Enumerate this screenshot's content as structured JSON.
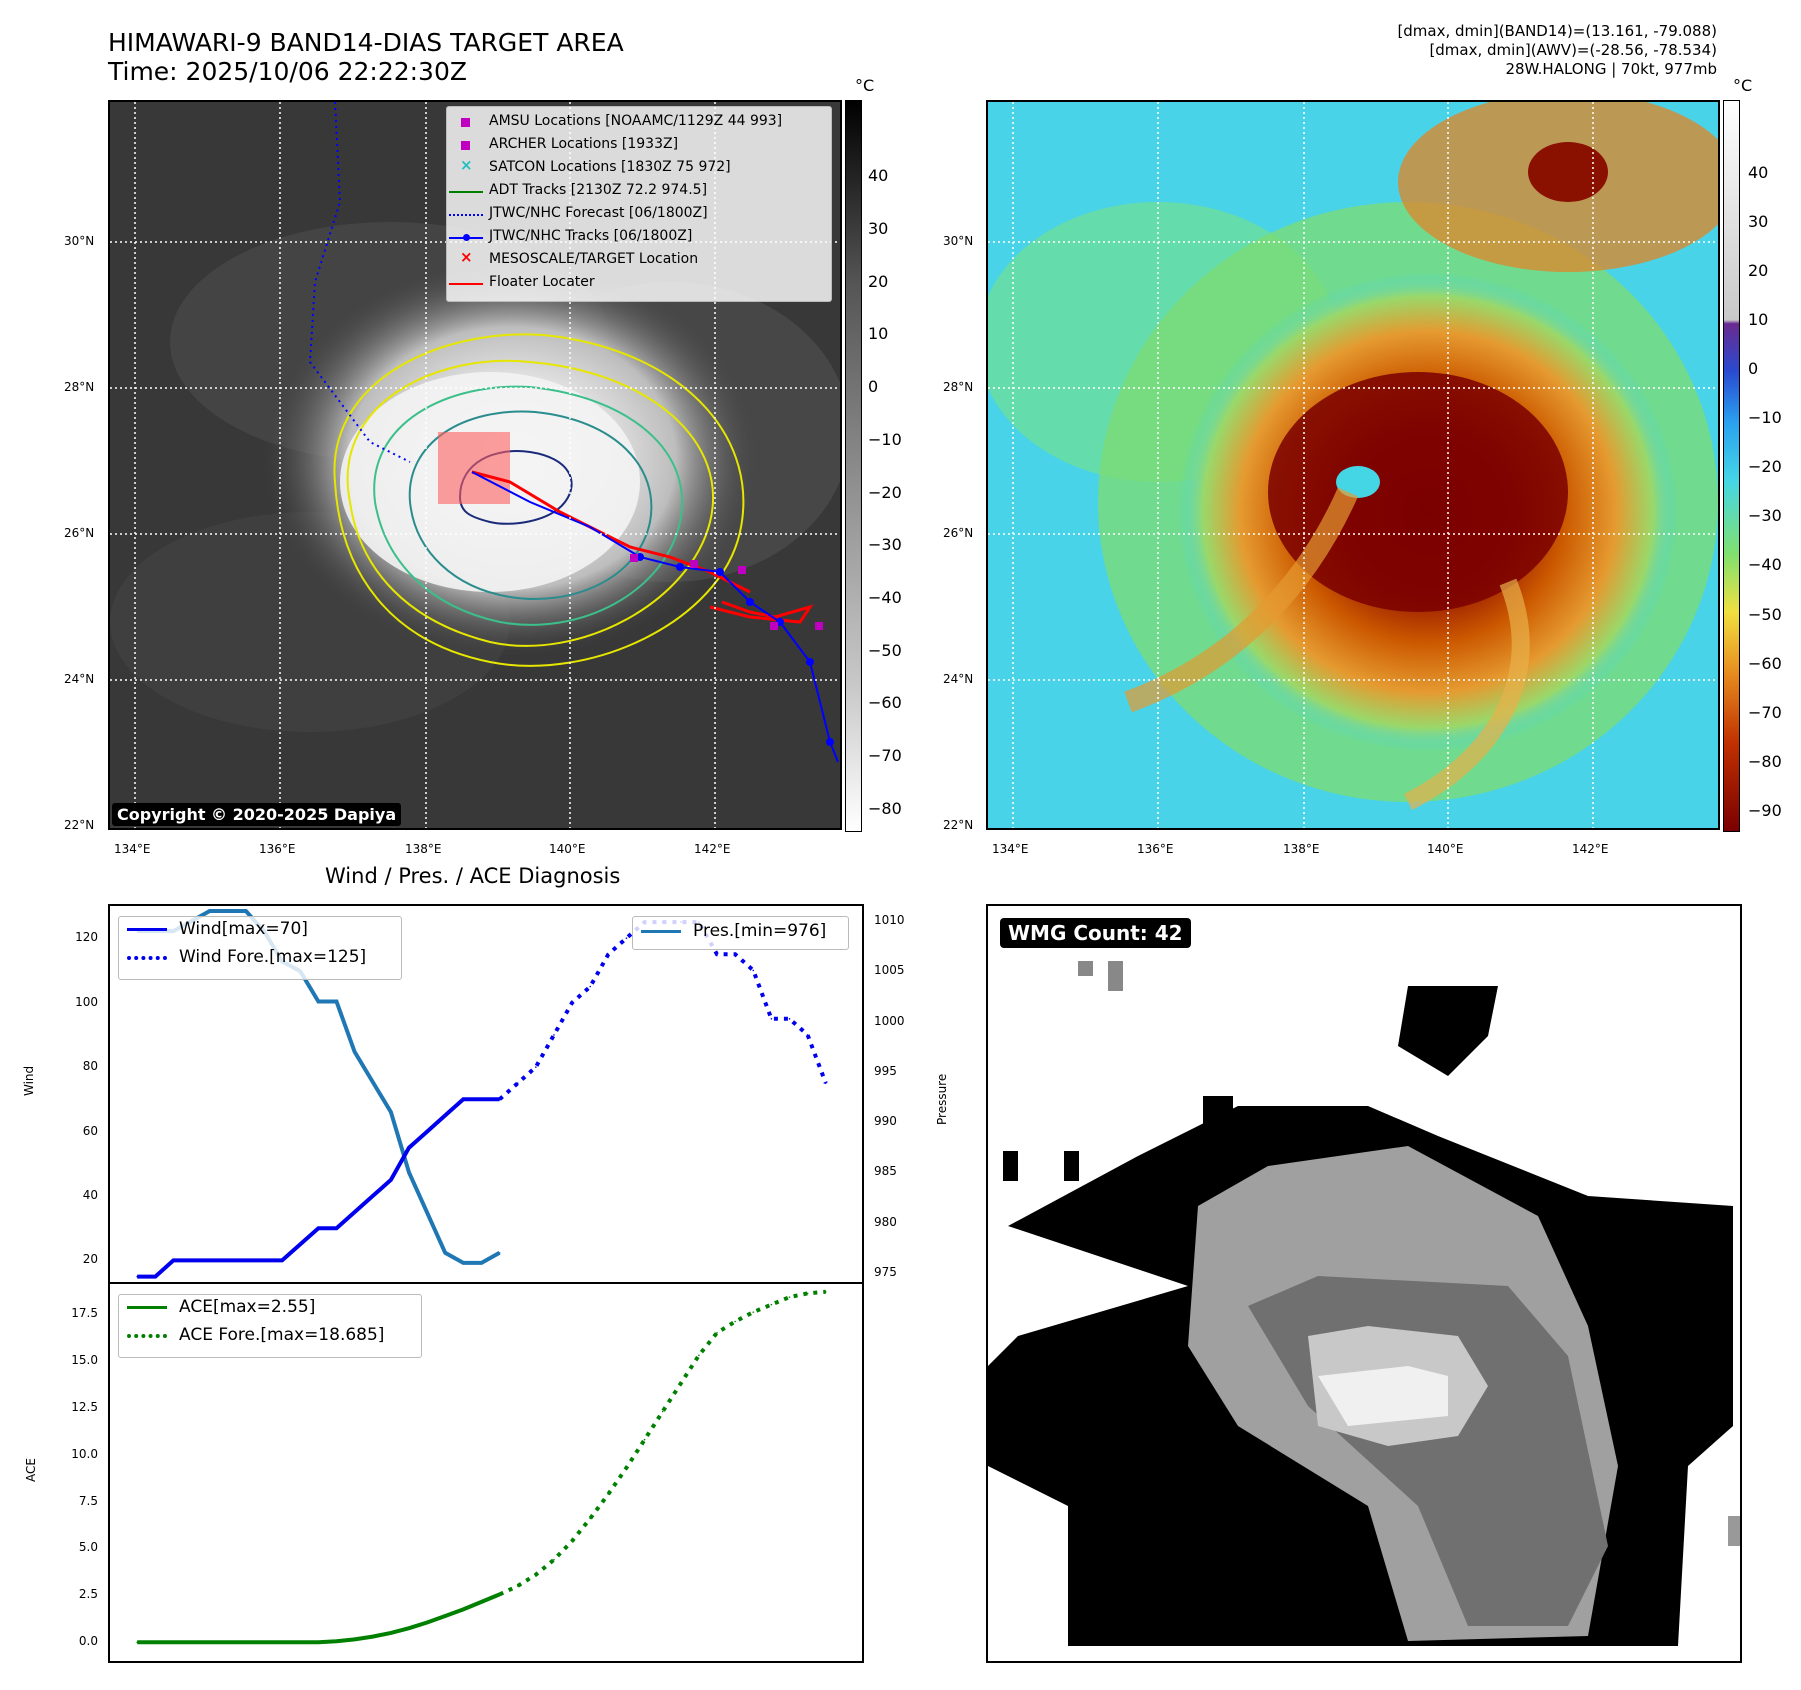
{
  "header": {
    "title_line1": "HIMAWARI-9 BAND14-DIAS TARGET AREA",
    "title_line2": "Time: 2025/10/06 22:22:30Z",
    "right_line1": "[dmax, dmin](BAND14)=(13.161, -79.088)",
    "right_line2": "[dmax, dmin](AWV)=(-28.56, -78.534)",
    "right_line3": "28W.HALONG | 70kt, 977mb"
  },
  "map_axes": {
    "lat_labels": [
      "30°N",
      "28°N",
      "26°N",
      "24°N",
      "22°N"
    ],
    "lon_labels": [
      "134°E",
      "136°E",
      "138°E",
      "140°E",
      "142°E"
    ]
  },
  "colorbar_left": {
    "unit": "°C",
    "ticks": [
      "40",
      "30",
      "20",
      "10",
      "0",
      "−10",
      "−20",
      "−30",
      "−40",
      "−50",
      "−60",
      "−70",
      "−80"
    ]
  },
  "colorbar_right": {
    "unit": "°C",
    "ticks": [
      "40",
      "30",
      "20",
      "10",
      "0",
      "−10",
      "−20",
      "−30",
      "−40",
      "−50",
      "−60",
      "−70",
      "−80",
      "−90"
    ]
  },
  "legend": {
    "items": [
      {
        "label": "AMSU Locations [NOAAMC/1129Z 44 993]",
        "color": "#c000c0",
        "marker": "square"
      },
      {
        "label": "ARCHER Locations [1933Z]",
        "color": "#c000c0",
        "marker": "square"
      },
      {
        "label": "SATCON Locations [1830Z 75 972]",
        "color": "#20c0c0",
        "marker": "x"
      },
      {
        "label": "ADT Tracks [2130Z 72.2 974.5]",
        "color": "#008000",
        "marker": "line"
      },
      {
        "label": "JTWC/NHC Forecast [06/1800Z]",
        "color": "#0000ff",
        "marker": "dotted"
      },
      {
        "label": "JTWC/NHC Tracks [06/1800Z]",
        "color": "#0000ff",
        "marker": "line-dot"
      },
      {
        "label": "MESOSCALE/TARGET Location",
        "color": "#ff0000",
        "marker": "x"
      },
      {
        "label": "Floater Locater",
        "color": "#ff0000",
        "marker": "line"
      }
    ]
  },
  "copyright": "Copyright © 2020-2025 Dapiya",
  "diag": {
    "title": "Wind / Pres. / ACE Diagnosis",
    "wind_ylabel": "Wind",
    "pres_ylabel": "Pressure",
    "ace_ylabel": "ACE",
    "legend_wind": "Wind[max=70]",
    "legend_wind_fore": "Wind Fore.[max=125]",
    "legend_pres": "Pres.[min=976]",
    "legend_ace": "ACE[max=2.55]",
    "legend_ace_fore": "ACE Fore.[max=18.685]"
  },
  "wmg": {
    "label": "WMG Count: 42"
  },
  "colors": {
    "wind": "#0000ee",
    "pressure": "#1f77b4",
    "ace": "#008000"
  },
  "chart_data": [
    {
      "type": "line",
      "title": "Wind / Pres. / ACE Diagnosis",
      "ylabel": "Wind",
      "ylim": [
        13,
        130
      ],
      "yticks": [
        20,
        40,
        60,
        80,
        100,
        120
      ],
      "series": [
        {
          "name": "Wind[max=70]",
          "style": "solid",
          "x": [
            0,
            1,
            2,
            3,
            4,
            5,
            6,
            7,
            8,
            9,
            10,
            11,
            12,
            13,
            14,
            15,
            16,
            17,
            18,
            19,
            20
          ],
          "values": [
            15,
            15,
            20,
            20,
            20,
            20,
            20,
            20,
            20,
            25,
            30,
            30,
            35,
            40,
            45,
            55,
            60,
            65,
            70,
            70,
            70
          ]
        },
        {
          "name": "Wind Fore.[max=125]",
          "style": "dotted",
          "x": [
            20,
            21,
            22,
            23,
            24,
            25,
            26,
            27,
            28,
            29,
            30,
            31,
            32,
            33,
            34,
            35,
            36,
            37,
            38
          ],
          "values": [
            70,
            75,
            80,
            90,
            100,
            105,
            115,
            120,
            125,
            125,
            125,
            125,
            115,
            115,
            110,
            95,
            95,
            90,
            75
          ]
        }
      ]
    },
    {
      "type": "line",
      "ylabel": "Pressure",
      "ylim": [
        974,
        1011.5
      ],
      "yticks": [
        975,
        980,
        985,
        990,
        995,
        1000,
        1005,
        1010
      ],
      "series": [
        {
          "name": "Pres.[min=976]",
          "style": "solid",
          "x": [
            0,
            1,
            2,
            3,
            4,
            5,
            6,
            7,
            8,
            9,
            10,
            11,
            12,
            13,
            14,
            15,
            16,
            17,
            18,
            19,
            20
          ],
          "values": [
            1009,
            1009,
            1009,
            1010,
            1011,
            1011,
            1011,
            1009,
            1006,
            1005,
            1002,
            1002,
            997,
            994,
            991,
            985,
            981,
            977,
            976,
            976,
            977
          ]
        }
      ]
    },
    {
      "type": "line",
      "ylabel": "ACE",
      "ylim": [
        -1,
        19.1
      ],
      "yticks": [
        0.0,
        2.5,
        5.0,
        7.5,
        10.0,
        12.5,
        15.0,
        17.5
      ],
      "series": [
        {
          "name": "ACE[max=2.55]",
          "style": "solid",
          "x": [
            0,
            1,
            2,
            3,
            4,
            5,
            6,
            7,
            8,
            9,
            10,
            11,
            12,
            13,
            14,
            15,
            16,
            17,
            18,
            19,
            20
          ],
          "values": [
            0,
            0,
            0,
            0,
            0,
            0,
            0,
            0,
            0,
            0,
            0,
            0.05,
            0.15,
            0.3,
            0.5,
            0.75,
            1.05,
            1.4,
            1.75,
            2.15,
            2.55
          ]
        },
        {
          "name": "ACE Fore.[max=18.685]",
          "style": "dotted",
          "x": [
            20,
            21,
            22,
            23,
            24,
            25,
            26,
            27,
            28,
            29,
            30,
            31,
            32,
            33,
            34,
            35,
            36,
            37,
            38
          ],
          "values": [
            2.55,
            3.0,
            3.6,
            4.4,
            5.4,
            6.6,
            7.9,
            9.3,
            10.8,
            12.3,
            13.8,
            15.3,
            16.5,
            17.1,
            17.6,
            18.0,
            18.4,
            18.6,
            18.685
          ]
        }
      ]
    }
  ]
}
